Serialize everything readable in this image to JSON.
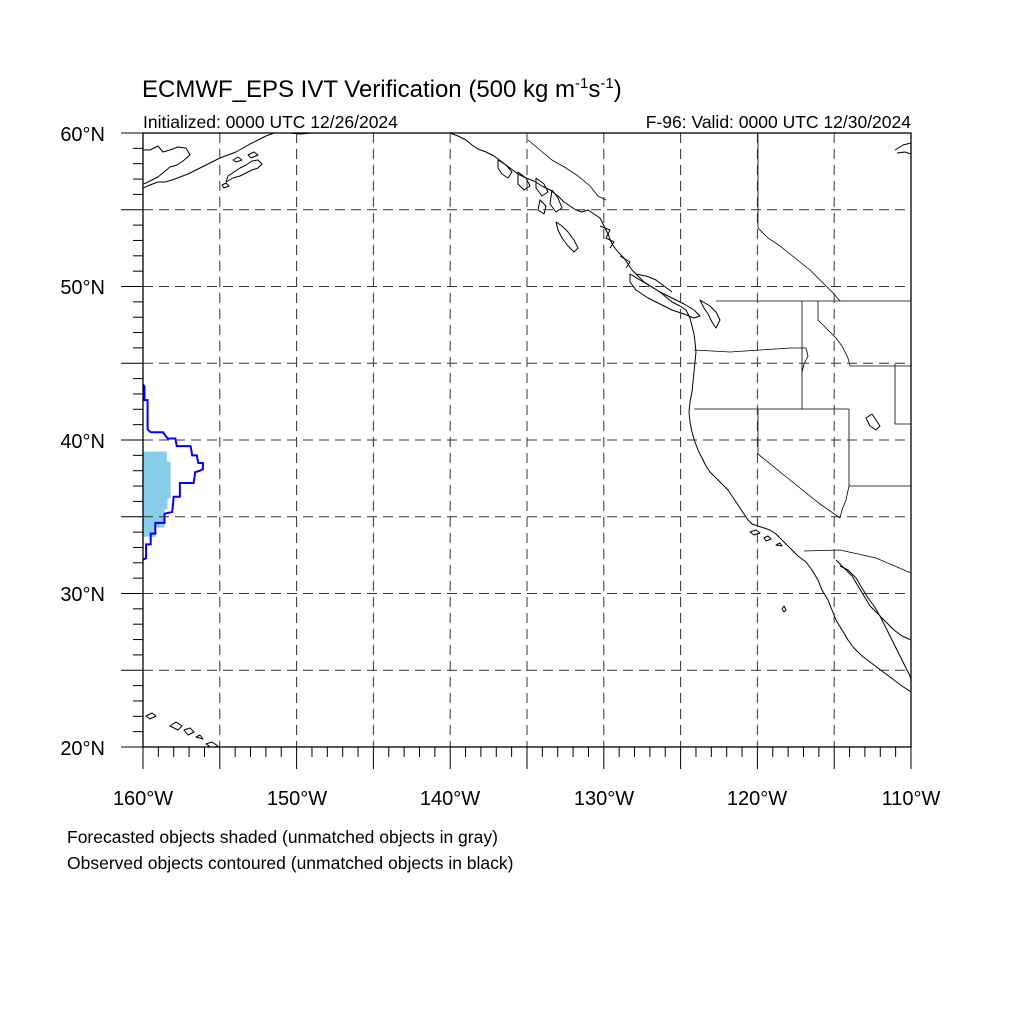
{
  "figure": {
    "title_main": "ECMWF_EPS IVT Verification (500 kg m",
    "title_sup1": "-1",
    "title_mid": "s",
    "title_sup2": "-1",
    "title_end": ")",
    "init_label": "Initialized: 0000 UTC 12/26/2024",
    "valid_label": "F-96: Valid: 0000 UTC 12/30/2024",
    "note_forecast": "Forecasted objects shaded (unmatched objects in gray)",
    "note_observed": "Observed objects contoured (unmatched objects in black)"
  },
  "map": {
    "lon_range": [
      -160,
      -110
    ],
    "lat_range": [
      20,
      60
    ],
    "lat_major": [
      20,
      30,
      40,
      50,
      60
    ],
    "lon_major": [
      -160,
      -150,
      -140,
      -130,
      -120,
      -110
    ],
    "lat_grid": [
      25,
      30,
      35,
      40,
      45,
      50,
      55
    ],
    "lon_grid": [
      -155,
      -150,
      -145,
      -140,
      -135,
      -130,
      -125,
      -120,
      -115
    ],
    "lat_labels": [
      "20°N",
      "30°N",
      "40°N",
      "50°N",
      "60°N"
    ],
    "lon_labels": [
      "160°W",
      "150°W",
      "140°W",
      "130°W",
      "120°W",
      "110°W"
    ],
    "colors": {
      "forecast_matched": "#87CEEB",
      "observed_matched": "#0000FF",
      "coastline": "#000000",
      "grid": "#333333"
    },
    "forecast_object": {
      "status": "matched",
      "outline": [
        [
          -160.0,
          39.25
        ],
        [
          -158.45,
          39.25
        ],
        [
          -158.45,
          38.6
        ],
        [
          -158.2,
          38.6
        ],
        [
          -158.2,
          36.2
        ],
        [
          -158.4,
          36.2
        ],
        [
          -158.4,
          35.5
        ],
        [
          -158.6,
          35.5
        ],
        [
          -158.6,
          34.3
        ],
        [
          -159.2,
          34.3
        ],
        [
          -159.2,
          33.7
        ],
        [
          -159.6,
          33.7
        ],
        [
          -160.0,
          33.7
        ]
      ]
    },
    "observed_object": {
      "status": "matched",
      "outline": [
        [
          -160.0,
          43.6
        ],
        [
          -159.9,
          43.5
        ],
        [
          -159.9,
          42.6
        ],
        [
          -159.7,
          42.6
        ],
        [
          -159.7,
          40.7
        ],
        [
          -159.5,
          40.5
        ],
        [
          -158.7,
          40.5
        ],
        [
          -158.4,
          40.1
        ],
        [
          -157.9,
          40.1
        ],
        [
          -157.8,
          39.6
        ],
        [
          -156.9,
          39.6
        ],
        [
          -156.8,
          39.0
        ],
        [
          -156.5,
          39.0
        ],
        [
          -156.4,
          38.5
        ],
        [
          -156.1,
          38.5
        ],
        [
          -156.1,
          38.1
        ],
        [
          -156.3,
          38.0
        ],
        [
          -156.6,
          37.9
        ],
        [
          -156.7,
          37.2
        ],
        [
          -157.6,
          37.2
        ],
        [
          -157.6,
          36.3
        ],
        [
          -158.0,
          36.3
        ],
        [
          -158.1,
          35.3
        ],
        [
          -158.6,
          35.2
        ],
        [
          -158.6,
          34.6
        ],
        [
          -159.2,
          34.6
        ],
        [
          -159.2,
          33.9
        ],
        [
          -159.5,
          33.9
        ],
        [
          -159.5,
          33.2
        ],
        [
          -159.8,
          33.2
        ],
        [
          -159.8,
          32.3
        ],
        [
          -160.0,
          32.2
        ]
      ]
    }
  }
}
